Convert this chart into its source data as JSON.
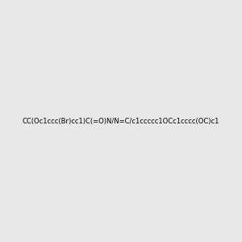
{
  "smiles": "CC(Oc1ccc(Br)cc1)C(=O)N/N=C/c1ccccc1OCc1cccc(OC)c1",
  "title": "",
  "bg_color": "#e8e8e8",
  "img_size": [
    300,
    300
  ]
}
